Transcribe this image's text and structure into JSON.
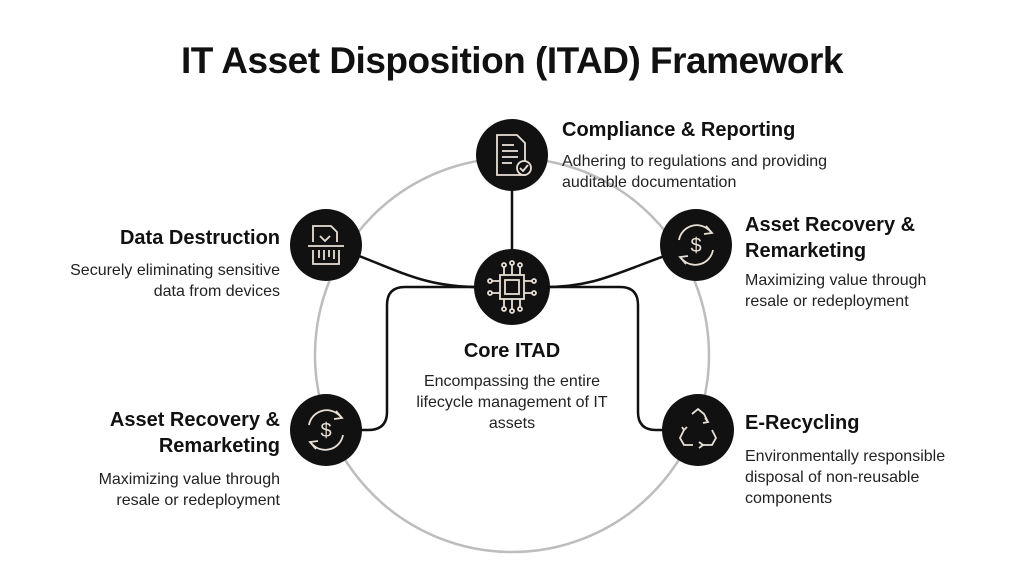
{
  "title": "IT Asset Disposition (ITAD) Framework",
  "center": {
    "title": "Core ITAD",
    "description": "Encompassing the entire lifecycle management of IT assets",
    "icon": "microchip-icon"
  },
  "nodes": [
    {
      "title": "Compliance & Reporting",
      "description": "Adhering to regulations and providing auditable documentation",
      "icon": "document-check-icon"
    },
    {
      "title": "Data Destruction",
      "description": "Securely eliminating sensitive data from devices",
      "icon": "shredder-icon"
    },
    {
      "title": "Asset Recovery & Remarketing",
      "description": "Maximizing value through resale or redeployment",
      "icon": "dollar-cycle-icon"
    },
    {
      "title": "Asset Recovery & Remarketing",
      "description": "Maximizing value through resale or redeployment",
      "icon": "dollar-cycle-icon"
    },
    {
      "title": "E-Recycling",
      "description": "Environmentally responsible disposal of non-reusable components",
      "icon": "recycle-icon"
    }
  ],
  "colors": {
    "node": "#111111",
    "icon": "#e8e0d6",
    "ring": "#bdbdbd"
  }
}
